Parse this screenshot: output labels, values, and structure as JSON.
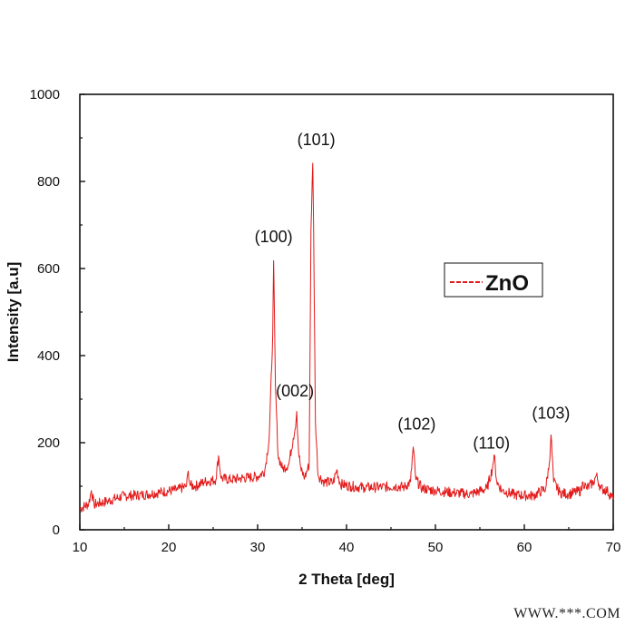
{
  "chart_data": {
    "type": "line",
    "xlabel": "2 Theta [deg]",
    "ylabel": "Intensity [a.u]",
    "xlim": [
      10,
      70
    ],
    "ylim": [
      0,
      1000
    ],
    "xticks": [
      10,
      20,
      30,
      40,
      50,
      60,
      70
    ],
    "yticks": [
      0,
      200,
      400,
      600,
      800,
      1000
    ],
    "grid": false,
    "legend_position": "right",
    "series": [
      {
        "name": "ZnO",
        "color": "#e31a1a",
        "line_style": "solid",
        "x": [
          10,
          11,
          11.3,
          11.6,
          13,
          15,
          17,
          19,
          21,
          22,
          22.2,
          22.4,
          23,
          24,
          25.3,
          25.6,
          25.9,
          27,
          28,
          29,
          30,
          30.8,
          31.3,
          31.7,
          31.8,
          32.0,
          32.3,
          32.8,
          33.5,
          34.0,
          34.2,
          34.4,
          34.6,
          34.9,
          35.3,
          35.8,
          36.0,
          36.2,
          36.3,
          36.5,
          36.8,
          37.5,
          38.5,
          38.9,
          39.3,
          40.5,
          42,
          44,
          45.5,
          46.5,
          47.2,
          47.5,
          47.8,
          48.5,
          50,
          52,
          54,
          55.8,
          56.4,
          56.6,
          56.9,
          57.5,
          59,
          61,
          62.4,
          62.8,
          63.0,
          63.3,
          64,
          65,
          66.4,
          66.6,
          67,
          67.8,
          68.1,
          68.6,
          69.3,
          70
        ],
        "y": [
          48,
          60,
          90,
          58,
          65,
          78,
          80,
          86,
          92,
          100,
          135,
          102,
          100,
          110,
          115,
          170,
          118,
          115,
          118,
          120,
          122,
          135,
          210,
          450,
          618,
          330,
          170,
          140,
          150,
          210,
          230,
          272,
          180,
          135,
          120,
          150,
          690,
          842,
          690,
          250,
          125,
          110,
          108,
          138,
          105,
          100,
          97,
          98,
          100,
          98,
          110,
          190,
          115,
          95,
          90,
          85,
          82,
          95,
          140,
          172,
          110,
          90,
          80,
          78,
          95,
          150,
          218,
          110,
          85,
          82,
          90,
          110,
          95,
          110,
          125,
          95,
          90,
          70
        ]
      }
    ],
    "annotations": [
      {
        "text": "(100)",
        "x": 31.8,
        "y": 660
      },
      {
        "text": "(101)",
        "x": 36.6,
        "y": 883
      },
      {
        "text": "(002)",
        "x": 34.2,
        "y": 306
      },
      {
        "text": "(102)",
        "x": 47.9,
        "y": 230
      },
      {
        "text": "(110)",
        "x": 56.3,
        "y": 186
      },
      {
        "text": "(103)",
        "x": 63.0,
        "y": 255
      }
    ]
  },
  "watermark": "WWW.***.COM"
}
